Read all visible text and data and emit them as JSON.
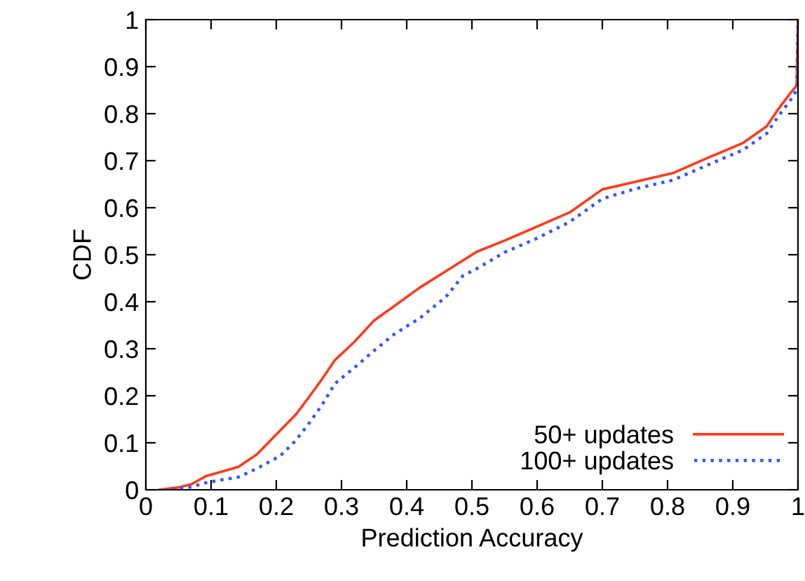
{
  "chart_data": {
    "type": "line",
    "xlabel": "Prediction Accuracy",
    "ylabel": "CDF",
    "xlim": [
      0,
      1
    ],
    "ylim": [
      0,
      1
    ],
    "xticks": [
      0,
      0.1,
      0.2,
      0.3,
      0.4,
      0.5,
      0.6,
      0.7,
      0.8,
      0.9,
      1
    ],
    "yticks": [
      0,
      0.1,
      0.2,
      0.3,
      0.4,
      0.5,
      0.6,
      0.7,
      0.8,
      0.9,
      1
    ],
    "grid": false,
    "legend": "bottom right",
    "marker": "none",
    "series": [
      {
        "name": "50+ updates",
        "color": "#ff3a1a",
        "line_style": "solid",
        "x": [
          0.02,
          0.05,
          0.07,
          0.092,
          0.12,
          0.142,
          0.17,
          0.206,
          0.23,
          0.25,
          0.27,
          0.29,
          0.32,
          0.35,
          0.38,
          0.42,
          0.46,
          0.507,
          0.55,
          0.6,
          0.65,
          0.7,
          0.75,
          0.809,
          0.86,
          0.916,
          0.952,
          0.97,
          0.988,
          0.998,
          1.0
        ],
        "values": [
          0,
          0.005,
          0.012,
          0.029,
          0.04,
          0.049,
          0.075,
          0.126,
          0.16,
          0.197,
          0.235,
          0.276,
          0.315,
          0.36,
          0.39,
          0.43,
          0.465,
          0.506,
          0.53,
          0.56,
          0.59,
          0.639,
          0.655,
          0.674,
          0.705,
          0.738,
          0.773,
          0.81,
          0.843,
          0.86,
          1.0
        ]
      },
      {
        "name": "100+ updates",
        "color": "#3355ff",
        "line_style": "dotted",
        "x": [
          0.04,
          0.07,
          0.092,
          0.12,
          0.142,
          0.17,
          0.206,
          0.23,
          0.25,
          0.27,
          0.29,
          0.32,
          0.35,
          0.38,
          0.42,
          0.46,
          0.486,
          0.507,
          0.55,
          0.6,
          0.65,
          0.7,
          0.75,
          0.809,
          0.86,
          0.916,
          0.952,
          0.97,
          0.988,
          0.998,
          1.0
        ],
        "values": [
          0,
          0.006,
          0.015,
          0.022,
          0.027,
          0.045,
          0.072,
          0.105,
          0.141,
          0.18,
          0.226,
          0.26,
          0.296,
          0.33,
          0.365,
          0.41,
          0.455,
          0.47,
          0.505,
          0.535,
          0.57,
          0.619,
          0.64,
          0.659,
          0.69,
          0.723,
          0.758,
          0.795,
          0.828,
          0.85,
          1.0
        ]
      }
    ]
  }
}
